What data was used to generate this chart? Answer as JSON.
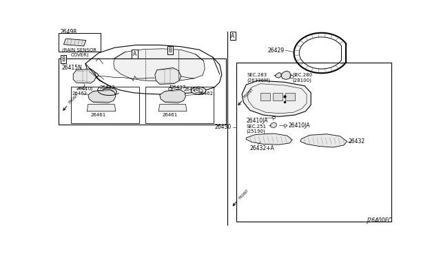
{
  "bg_color": "#ffffff",
  "lc": "#000000",
  "diagram_code": "J26400FC",
  "fs": 5.5,
  "parts": {
    "rain_sensor_cover": "26498",
    "rain_sensor_label": "(RAIN SENSOR\nCOVER)",
    "part_26415N": "26415N",
    "part_26410J_left": "26410J",
    "part_26410J_right": "26410J",
    "part_26462_left": "26462",
    "part_26462_right": "26462",
    "part_26437_left": "26437",
    "part_26437_right": "26437",
    "part_26461_left": "26461",
    "part_26461_right": "26461",
    "part_26429": "26429",
    "part_26430": "26430",
    "part_26410JA_1": "26410JA",
    "part_26410JA_2": "26410JA",
    "part_sec283": "SEC.283\n(26336M)",
    "part_sec280": "SEC.280\n(28100)",
    "part_sec251": "SEC.251\n(25190)",
    "part_26432": "26432",
    "part_26432A": "26432+A"
  }
}
